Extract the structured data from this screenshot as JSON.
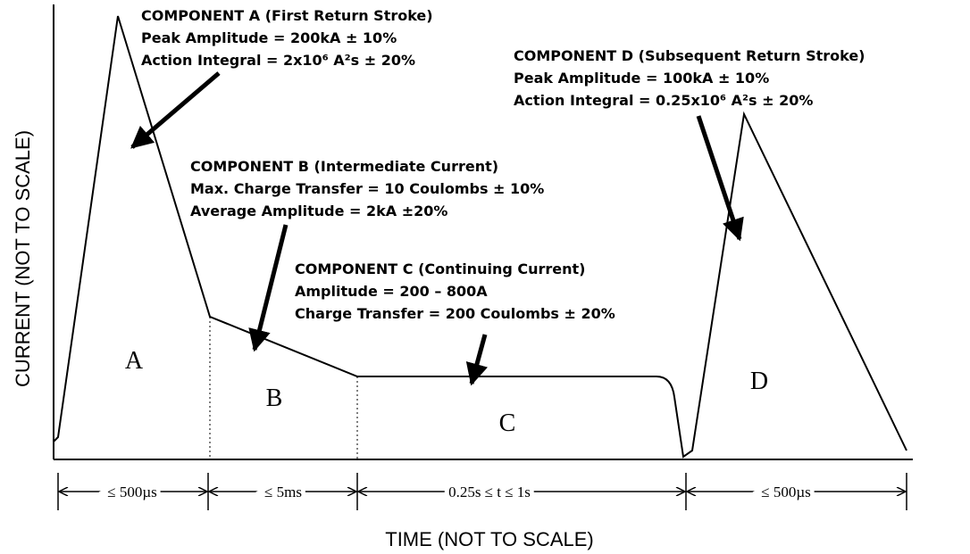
{
  "axes": {
    "y_label": "CURRENT (NOT TO SCALE)",
    "x_label": "TIME (NOT TO SCALE)"
  },
  "components": [
    {
      "lines": [
        "COMPONENT A (First Return Stroke)",
        "Peak Amplitude = 200kA ± 10%",
        "Action Integral = 2x10⁶ A²s ± 20%"
      ]
    },
    {
      "lines": [
        "COMPONENT B (Intermediate Current)",
        "Max. Charge Transfer = 10 Coulombs ± 10%",
        "Average Amplitude = 2kA ±20%"
      ]
    },
    {
      "lines": [
        "COMPONENT C (Continuing Current)",
        "Amplitude = 200 – 800A",
        "Charge Transfer = 200 Coulombs ± 20%"
      ]
    },
    {
      "lines": [
        "COMPONENT D (Subsequent Return Stroke)",
        "Peak Amplitude = 100kA ± 10%",
        "Action Integral = 0.25x10⁶ A²s ± 20%"
      ]
    }
  ],
  "regions": [
    "A",
    "B",
    "C",
    "D"
  ],
  "durations": [
    "≤ 500µs",
    "≤ 5ms",
    "0.25s ≤ t ≤ 1s",
    "≤ 500µs"
  ]
}
